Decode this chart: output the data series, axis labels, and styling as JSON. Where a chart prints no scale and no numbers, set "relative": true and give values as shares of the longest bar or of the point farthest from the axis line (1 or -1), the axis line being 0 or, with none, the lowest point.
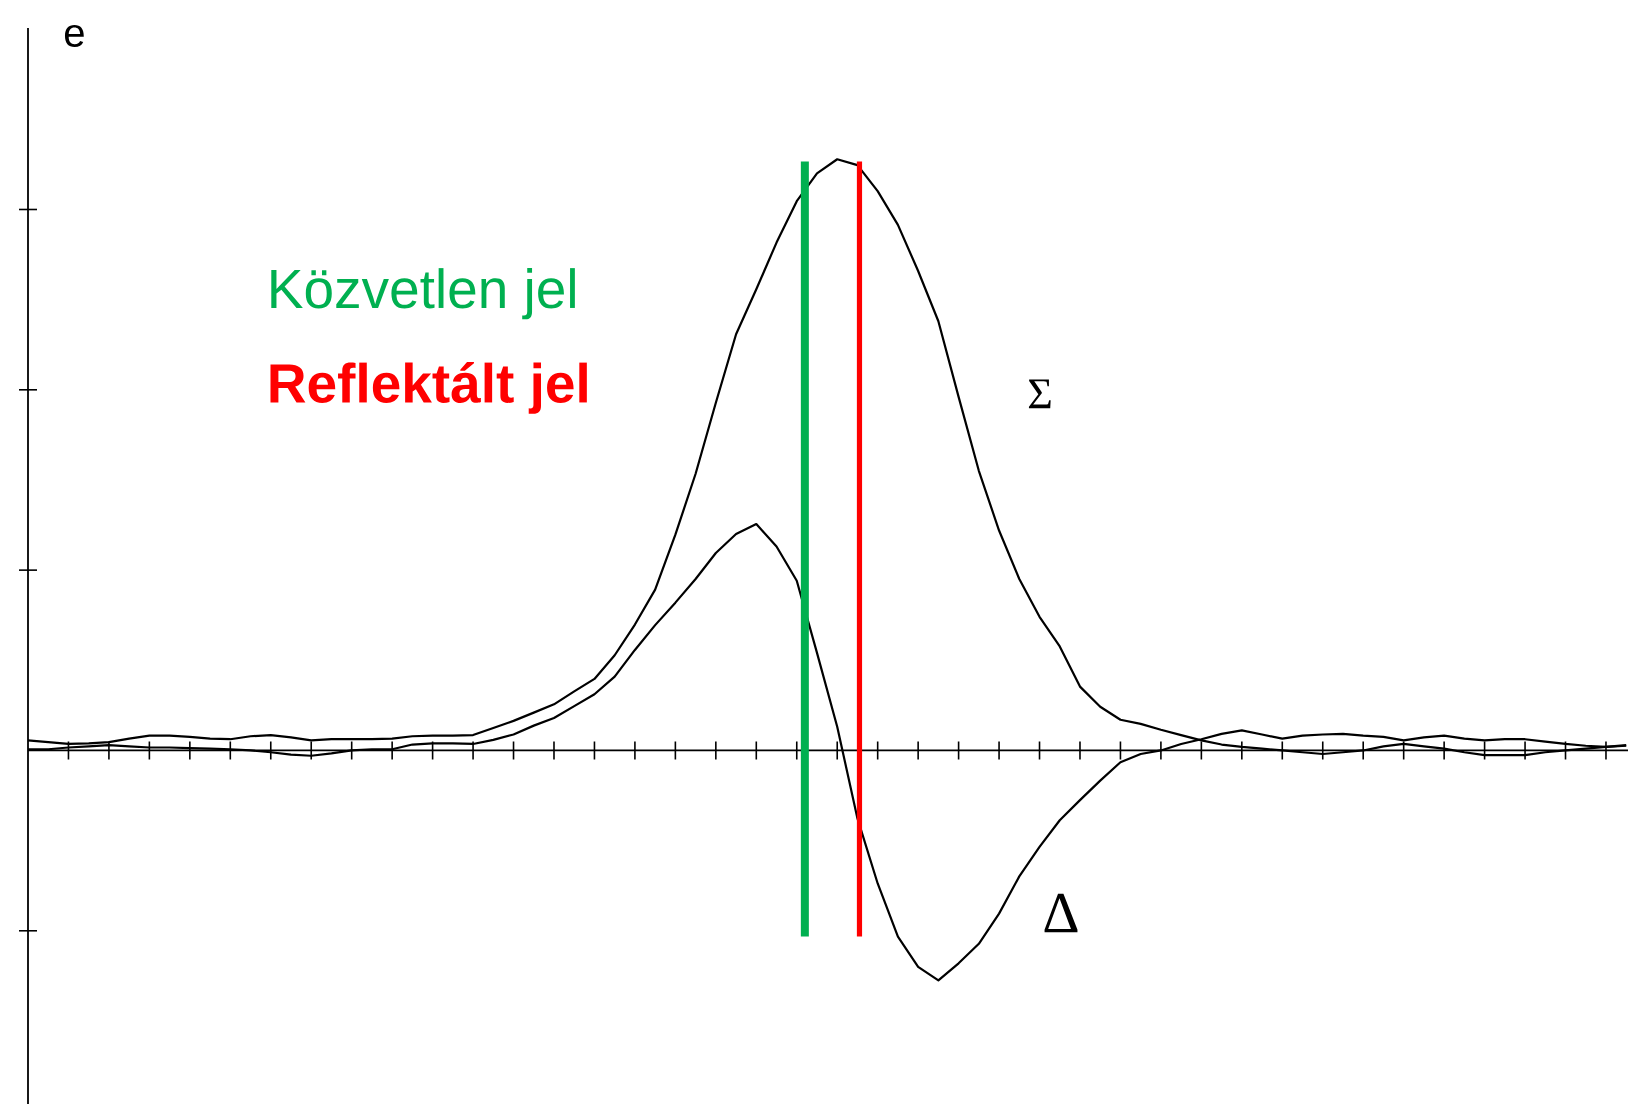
{
  "chart_data": {
    "type": "line",
    "relative": true,
    "ylabel": "e",
    "categories": [
      null,
      null,
      null,
      null,
      null,
      null,
      null,
      null,
      null,
      null,
      null,
      null,
      null,
      null,
      null,
      null,
      null,
      null,
      null,
      null,
      null,
      null,
      null,
      null,
      null,
      null,
      null,
      null,
      null,
      null,
      null,
      null,
      null,
      null,
      null,
      null,
      null,
      null,
      null,
      null,
      null,
      null,
      null,
      null,
      null,
      null,
      null,
      null,
      null,
      null,
      null,
      null,
      null,
      null,
      null,
      null,
      null,
      null,
      null,
      null,
      null,
      null,
      null,
      null,
      null,
      null,
      null,
      null,
      null,
      null,
      null,
      null,
      null,
      null,
      null,
      null,
      null,
      null,
      null,
      null
    ],
    "series": [
      {
        "name": "Σ",
        "color": "#000000",
        "values": [
          0.017,
          0.014,
          0.011,
          0.012,
          0.014,
          0.02,
          0.025,
          0.025,
          0.023,
          0.02,
          0.019,
          0.024,
          0.026,
          0.022,
          0.017,
          0.019,
          0.019,
          0.019,
          0.02,
          0.024,
          0.025,
          0.025,
          0.026,
          0.038,
          0.05,
          0.064,
          0.078,
          0.1,
          0.121,
          0.161,
          0.213,
          0.272,
          0.365,
          0.468,
          0.588,
          0.704,
          0.78,
          0.859,
          0.929,
          0.976,
          1,
          0.99,
          0.946,
          0.889,
          0.811,
          0.726,
          0.598,
          0.473,
          0.372,
          0.29,
          0.226,
          0.176,
          0.108,
          0.074,
          0.052,
          0.045,
          0.035,
          0.026,
          0.017,
          0.01,
          0.006,
          0.003,
          0,
          -0.003,
          -0.006,
          -0.003,
          0,
          0.007,
          0.011,
          0.007,
          0.003,
          -0.003,
          -0.008,
          -0.008,
          -0.008,
          -0.003,
          0,
          0.003,
          0.006,
          0.009
        ]
      },
      {
        "name": "Δ",
        "color": "#000000",
        "values": [
          0.002,
          0.002,
          0.005,
          0.007,
          0.009,
          0.007,
          0.005,
          0.005,
          0.004,
          0.003,
          0.002,
          0,
          -0.003,
          -0.007,
          -0.009,
          -0.005,
          0,
          0.002,
          0.002,
          0.01,
          0.012,
          0.012,
          0.011,
          0.018,
          0.027,
          0.042,
          0.055,
          0.075,
          0.095,
          0.125,
          0.17,
          0.212,
          0.25,
          0.29,
          0.334,
          0.366,
          0.383,
          0.345,
          0.287,
          0.165,
          0.04,
          -0.115,
          -0.225,
          -0.315,
          -0.366,
          -0.389,
          -0.36,
          -0.327,
          -0.276,
          -0.213,
          -0.163,
          -0.118,
          -0.084,
          -0.051,
          -0.02,
          -0.006,
          0,
          0.011,
          0.019,
          0.028,
          0.034,
          0.027,
          0.02,
          0.025,
          0.027,
          0.028,
          0.025,
          0.023,
          0.017,
          0.022,
          0.025,
          0.02,
          0.017,
          0.019,
          0.019,
          0.015,
          0.011,
          0.008,
          0.006,
          0.008
        ]
      }
    ],
    "annotations": [
      "Közvetlen jel",
      "Reflektált jel"
    ]
  }
}
